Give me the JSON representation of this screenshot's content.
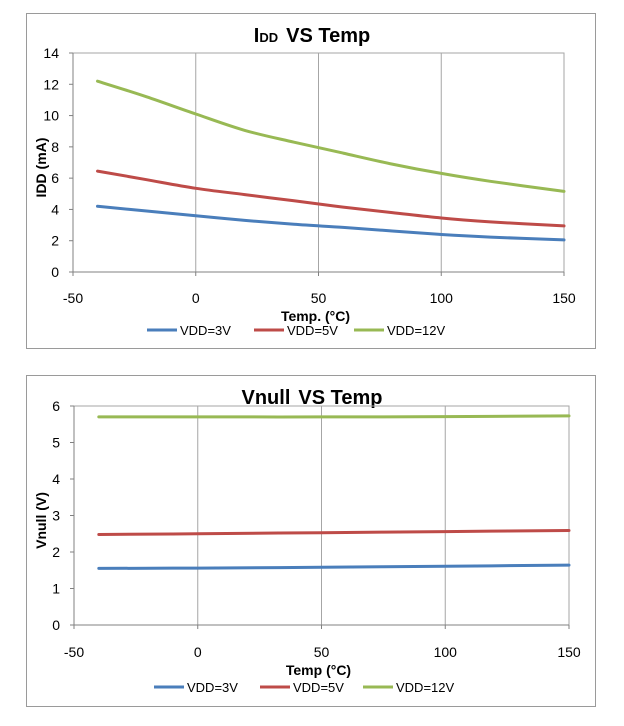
{
  "chart_data": [
    {
      "type": "line",
      "title_main": "I",
      "title_sub": "DD",
      "title_rest": "VS Temp",
      "xlabel": "Temp. (°C)",
      "ylabel": "IDD (mA)",
      "xlim": [
        -50,
        150
      ],
      "ylim": [
        0,
        14
      ],
      "xticks": [
        -50,
        0,
        50,
        100,
        150
      ],
      "yticks": [
        0,
        2,
        4,
        6,
        8,
        10,
        12,
        14
      ],
      "grid": "vertical",
      "legend": "bottom",
      "x": [
        -40,
        -20,
        0,
        20,
        40,
        60,
        80,
        100,
        120,
        150
      ],
      "series": [
        {
          "name": "VDD=3V",
          "color": "#4a7ebb",
          "values": [
            4.2,
            3.9,
            3.6,
            3.3,
            3.05,
            2.85,
            2.62,
            2.4,
            2.23,
            2.05
          ]
        },
        {
          "name": "VDD=5V",
          "color": "#be4b48",
          "values": [
            6.45,
            5.9,
            5.35,
            4.95,
            4.55,
            4.15,
            3.8,
            3.45,
            3.2,
            2.95
          ]
        },
        {
          "name": "VDD=12V",
          "color": "#98b954",
          "values": [
            12.2,
            11.2,
            10.1,
            9.05,
            8.3,
            7.6,
            6.9,
            6.3,
            5.8,
            5.15
          ]
        }
      ]
    },
    {
      "type": "line",
      "title_main": "Vnull",
      "title_sub": "",
      "title_rest": "VS Temp",
      "xlabel": "Temp (°C)",
      "ylabel": "Vnull (V)",
      "xlim": [
        -50,
        150
      ],
      "ylim": [
        0,
        6
      ],
      "xticks": [
        -50,
        0,
        50,
        100,
        150
      ],
      "yticks": [
        0,
        1,
        2,
        3,
        4,
        5,
        6
      ],
      "grid": "vertical",
      "legend": "bottom",
      "x": [
        -40,
        0,
        50,
        100,
        150
      ],
      "series": [
        {
          "name": "VDD=3V",
          "color": "#4a7ebb",
          "values": [
            1.55,
            1.56,
            1.58,
            1.61,
            1.64
          ]
        },
        {
          "name": "VDD=5V",
          "color": "#be4b48",
          "values": [
            2.48,
            2.5,
            2.53,
            2.56,
            2.59
          ]
        },
        {
          "name": "VDD=12V",
          "color": "#98b954",
          "values": [
            5.7,
            5.7,
            5.7,
            5.71,
            5.73
          ]
        }
      ]
    }
  ]
}
